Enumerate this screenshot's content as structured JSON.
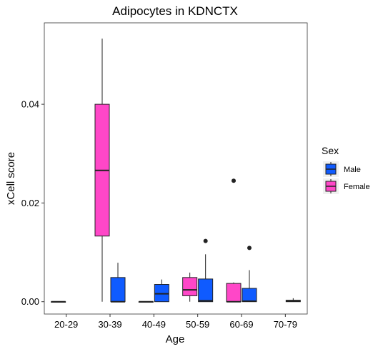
{
  "chart_data": {
    "type": "boxplot",
    "title": "Adipocytes in KDNCTX",
    "xlabel": "Age",
    "ylabel": "xCell score",
    "ylim": [
      -0.0025,
      0.0565
    ],
    "yticks": [
      0.0,
      0.02,
      0.04
    ],
    "ytick_labels": [
      "0.00",
      "0.02",
      "0.04"
    ],
    "categories": [
      "20-29",
      "30-39",
      "40-49",
      "50-59",
      "60-69",
      "70-79"
    ],
    "grid": false,
    "legend": {
      "title": "Sex",
      "position": "right"
    },
    "series": [
      {
        "name": "Male",
        "color": "#0F5BFF",
        "boxes": [
          null,
          {
            "min": 0.0,
            "q1": 0.0,
            "median": 0.0,
            "q3": 0.0049,
            "max": 0.0079,
            "outliers": []
          },
          {
            "min": 0.0,
            "q1": 0.0,
            "median": 0.0016,
            "q3": 0.0035,
            "max": 0.0045,
            "outliers": []
          },
          {
            "min": 0.0,
            "q1": 0.0,
            "median": 0.0002,
            "q3": 0.0046,
            "max": 0.0096,
            "outliers": [
              0.0123
            ]
          },
          {
            "min": 0.0,
            "q1": 0.0,
            "median": 0.0001,
            "q3": 0.0027,
            "max": 0.0064,
            "outliers": [
              0.0109
            ]
          },
          {
            "min": 0.0,
            "q1": 0.0,
            "median": 0.0001,
            "q3": 0.0003,
            "max": 0.0007,
            "outliers": []
          }
        ]
      },
      {
        "name": "Female",
        "color": "#FF47C8",
        "boxes": [
          {
            "min": 0.0,
            "q1": 0.0,
            "median": 0.0,
            "q3": 0.0,
            "max": 0.0,
            "outliers": []
          },
          {
            "min": 0.0,
            "q1": 0.0133,
            "median": 0.0266,
            "q3": 0.04,
            "max": 0.0533,
            "outliers": []
          },
          {
            "min": 0.0,
            "q1": 0.0,
            "median": 0.0,
            "q3": 0.0,
            "max": 0.0,
            "outliers": []
          },
          {
            "min": 0.0,
            "q1": 0.0012,
            "median": 0.0024,
            "q3": 0.0049,
            "max": 0.0059,
            "outliers": []
          },
          {
            "min": 0.0,
            "q1": 0.0,
            "median": 0.0,
            "q3": 0.0037,
            "max": 0.0039,
            "outliers": [
              0.0245
            ]
          },
          null
        ]
      }
    ]
  }
}
